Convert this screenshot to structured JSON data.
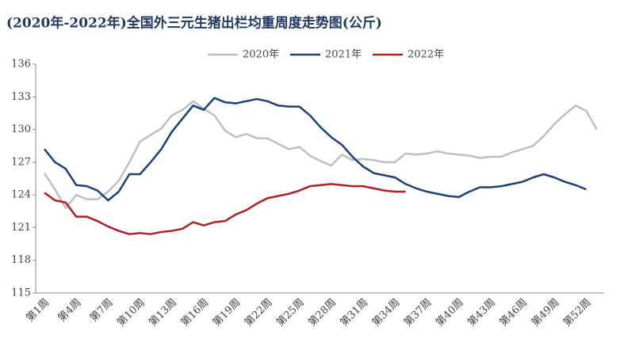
{
  "chart_data": {
    "type": "line",
    "title": "(2020年-2022年)全国外三元生猪出栏均重周度走势图(公斤)",
    "categories": [
      "第1周",
      null,
      null,
      "第4周",
      null,
      null,
      "第7周",
      null,
      null,
      "第10周",
      null,
      null,
      "第13周",
      null,
      null,
      "第16周",
      null,
      null,
      "第19周",
      null,
      null,
      "第22周",
      null,
      null,
      "第25周",
      null,
      null,
      "第28周",
      null,
      null,
      "第31周",
      null,
      null,
      "第34周",
      null,
      null,
      "第37周",
      null,
      null,
      "第40周",
      null,
      null,
      "第43周",
      null,
      null,
      "第46周",
      null,
      null,
      "第49周",
      null,
      null,
      "第52周",
      null
    ],
    "series": [
      {
        "name": "2020年",
        "color": "#bfbfbf",
        "values": [
          126.0,
          124.5,
          122.8,
          124.0,
          123.6,
          123.6,
          124.3,
          125.3,
          127.0,
          128.9,
          129.5,
          130.1,
          131.3,
          131.8,
          132.6,
          131.9,
          131.3,
          129.9,
          129.3,
          129.6,
          129.2,
          129.2,
          128.7,
          128.2,
          128.4,
          127.6,
          127.1,
          126.7,
          127.7,
          127.2,
          127.3,
          127.2,
          127.0,
          127.0,
          127.8,
          127.7,
          127.8,
          128.0,
          127.8,
          127.7,
          127.6,
          127.4,
          127.5,
          127.5,
          127.9,
          128.2,
          128.5,
          129.4,
          130.5,
          131.4,
          132.2,
          131.7,
          130.0
        ]
      },
      {
        "name": "2021年",
        "color": "#1f3f7a",
        "values": [
          128.2,
          127.0,
          126.4,
          124.9,
          124.8,
          124.4,
          123.5,
          124.3,
          125.9,
          125.9,
          127.0,
          128.2,
          129.8,
          131.0,
          132.2,
          131.8,
          132.9,
          132.5,
          132.4,
          132.6,
          132.8,
          132.6,
          132.2,
          132.1,
          132.1,
          131.3,
          130.2,
          129.3,
          128.6,
          127.5,
          126.6,
          126.0,
          125.8,
          125.6,
          125.0,
          124.6,
          124.3,
          124.1,
          123.9,
          123.8,
          124.3,
          124.7,
          124.7,
          124.8,
          125.0,
          125.2,
          125.6,
          125.9,
          125.6,
          125.2,
          124.9,
          124.5,
          null
        ]
      },
      {
        "name": "2022年",
        "color": "#b01f24",
        "values": [
          124.2,
          123.5,
          123.3,
          122.0,
          122.0,
          121.6,
          121.1,
          120.7,
          120.4,
          120.5,
          120.4,
          120.6,
          120.7,
          120.9,
          121.5,
          121.2,
          121.5,
          121.6,
          122.2,
          122.6,
          123.2,
          123.7,
          123.9,
          124.1,
          124.4,
          124.8,
          124.9,
          125.0,
          124.9,
          124.8,
          124.8,
          124.6,
          124.4,
          124.3,
          124.3,
          null,
          null,
          null,
          null,
          null,
          null,
          null,
          null,
          null,
          null,
          null,
          null,
          null,
          null,
          null,
          null,
          null,
          null
        ]
      }
    ],
    "ylim": [
      115,
      136
    ],
    "yticks": [
      115,
      118,
      121,
      124,
      127,
      130,
      133,
      136
    ],
    "grid": false,
    "legend": "top"
  }
}
